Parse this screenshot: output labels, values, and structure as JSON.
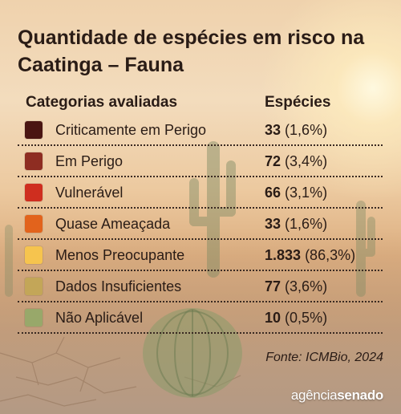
{
  "title": "Quantidade de espécies em risco na Caatinga – Fauna",
  "header": {
    "category": "Categorias avaliadas",
    "value": "Espécies"
  },
  "chart_data": {
    "type": "table",
    "columns": [
      "Categorias avaliadas",
      "Espécies"
    ],
    "rows": [
      {
        "category": "Criticamente em Perigo",
        "count": "33",
        "percent": "(1,6%)",
        "color": "#4a1512"
      },
      {
        "category": "Em Perigo",
        "count": "72",
        "percent": "(3,4%)",
        "color": "#8e2d22"
      },
      {
        "category": "Vulnerável",
        "count": "66",
        "percent": "(3,1%)",
        "color": "#cf2e1f"
      },
      {
        "category": "Quase Ameaçada",
        "count": "33",
        "percent": "(1,6%)",
        "color": "#e2631c"
      },
      {
        "category": "Menos Preocupante",
        "count": "1.833",
        "percent": "(86,3%)",
        "color": "#f6c44e"
      },
      {
        "category": "Dados Insuficientes",
        "count": "77",
        "percent": "(3,6%)",
        "color": "#c3a658"
      },
      {
        "category": "Não Aplicável",
        "count": "10",
        "percent": "(0,5%)",
        "color": "#98a86a"
      }
    ]
  },
  "source": "Fonte: ICMBio, 2024",
  "logo": {
    "part1": "agência",
    "part2": "senado"
  }
}
